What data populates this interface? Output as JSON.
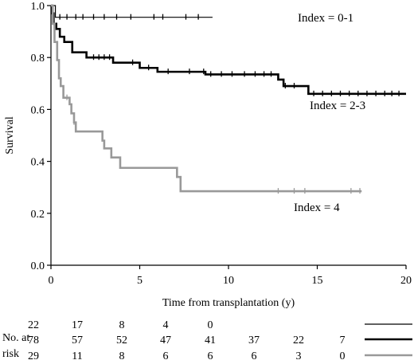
{
  "chart_data": {
    "type": "line",
    "xlabel": "Time from transplantation (y)",
    "ylabel": "Survival",
    "xlim": [
      0,
      20
    ],
    "ylim": [
      0,
      1
    ],
    "x_ticks": [
      0,
      5,
      10,
      15,
      20
    ],
    "y_ticks": [
      0.0,
      0.2,
      0.4,
      0.6,
      0.8,
      1.0
    ],
    "x_tick_labels": [
      "0",
      "5",
      "10",
      "15",
      "20"
    ],
    "y_tick_labels": [
      "0.0",
      "0.2",
      "0.4",
      "0.6",
      "0.8",
      "1.0"
    ],
    "grid": false,
    "series": [
      {
        "name": "Index = 0-1",
        "color": "#000000",
        "stroke_weight": "thin",
        "steps": [
          [
            0,
            1.0
          ],
          [
            0.25,
            0.955
          ],
          [
            9.1,
            0.955
          ]
        ],
        "censors": [
          0.5,
          0.9,
          1.4,
          1.8,
          2.4,
          3.0,
          3.7,
          4.5,
          5.8,
          6.3,
          7.6,
          8.3
        ]
      },
      {
        "name": "Index = 2-3",
        "color": "#000000",
        "stroke_weight": "thick",
        "steps": [
          [
            0,
            1.0
          ],
          [
            0.08,
            0.97
          ],
          [
            0.15,
            0.93
          ],
          [
            0.3,
            0.91
          ],
          [
            0.5,
            0.88
          ],
          [
            0.75,
            0.86
          ],
          [
            1.2,
            0.82
          ],
          [
            2.0,
            0.8
          ],
          [
            3.5,
            0.78
          ],
          [
            5.0,
            0.76
          ],
          [
            6.0,
            0.745
          ],
          [
            8.7,
            0.735
          ],
          [
            12.8,
            0.715
          ],
          [
            13.1,
            0.69
          ],
          [
            14.5,
            0.66
          ],
          [
            20.0,
            0.66
          ]
        ],
        "censors": [
          2.4,
          2.7,
          3.0,
          3.3,
          4.6,
          5.5,
          6.6,
          7.8,
          8.6,
          9.0,
          9.6,
          10.2,
          10.9,
          11.5,
          12.0,
          12.4,
          13.2,
          13.7,
          14.8,
          15.3,
          15.8,
          16.3,
          16.8,
          17.3,
          17.8,
          18.3,
          18.8,
          19.2,
          19.6
        ]
      },
      {
        "name": "Index = 4",
        "color": "#999999",
        "stroke_weight": "thick",
        "steps": [
          [
            0,
            1.0
          ],
          [
            0.1,
            0.93
          ],
          [
            0.2,
            0.86
          ],
          [
            0.35,
            0.79
          ],
          [
            0.45,
            0.72
          ],
          [
            0.55,
            0.69
          ],
          [
            0.7,
            0.645
          ],
          [
            1.05,
            0.62
          ],
          [
            1.15,
            0.585
          ],
          [
            1.3,
            0.55
          ],
          [
            1.4,
            0.515
          ],
          [
            2.9,
            0.48
          ],
          [
            3.0,
            0.45
          ],
          [
            3.4,
            0.415
          ],
          [
            3.9,
            0.375
          ],
          [
            7.1,
            0.34
          ],
          [
            7.3,
            0.285
          ],
          [
            17.5,
            0.285
          ]
        ],
        "censors": [
          0.9,
          1.3,
          12.8,
          13.7,
          14.3,
          16.9,
          17.4
        ]
      }
    ],
    "risk_table": {
      "label_line1": "No. at",
      "label_line2": "risk",
      "rows": [
        {
          "values": [
            "22",
            "17",
            "8",
            "4",
            "0"
          ],
          "legend_color": "#000000",
          "legend_weight": "thin"
        },
        {
          "values": [
            "78",
            "57",
            "52",
            "47",
            "41",
            "37",
            "22",
            "7"
          ],
          "legend_color": "#000000",
          "legend_weight": "thick"
        },
        {
          "values": [
            "29",
            "11",
            "8",
            "6",
            "6",
            "6",
            "3",
            "0"
          ],
          "legend_color": "#999999",
          "legend_weight": "thick"
        }
      ],
      "times": [
        0,
        2.5,
        5,
        7.5,
        10,
        12.5,
        15,
        17.5
      ]
    }
  }
}
